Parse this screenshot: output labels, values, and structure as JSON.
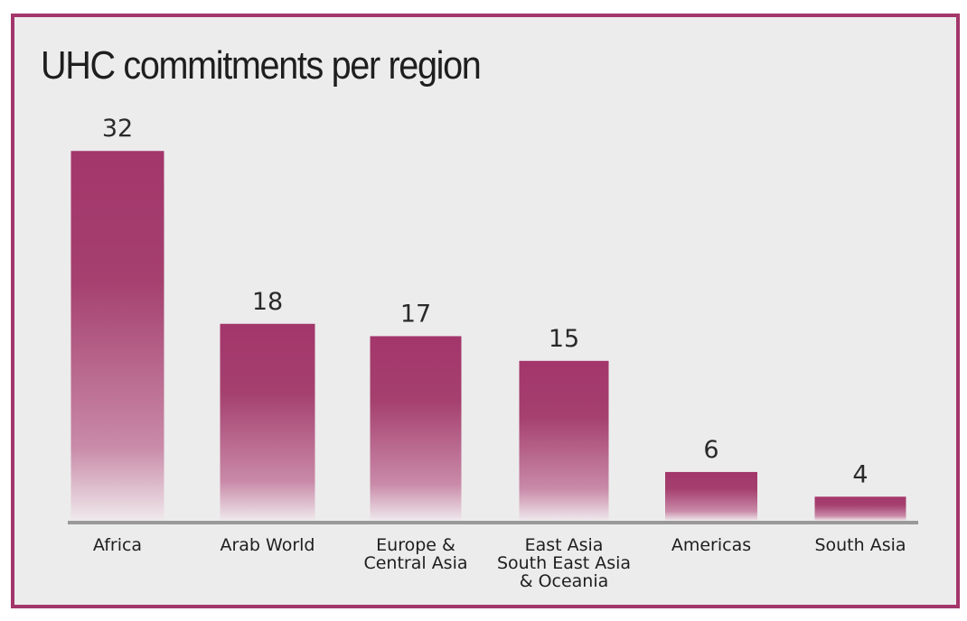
{
  "chart_data": {
    "type": "bar",
    "title": "UHC commitments per region",
    "xlabel": "",
    "ylabel": "",
    "categories": [
      [
        "Africa"
      ],
      [
        "Arab World"
      ],
      [
        "Europe &",
        "Central Asia"
      ],
      [
        "East Asia",
        "South East Asia",
        "& Oceania"
      ],
      [
        "Americas"
      ],
      [
        "South Asia"
      ]
    ],
    "values": [
      32,
      18,
      17,
      15,
      6,
      4
    ],
    "data_labels": true,
    "grid": false,
    "colors": {
      "bar": "#a3366b",
      "frame": "#a3366b",
      "axis": "#999999",
      "background": "#ececec"
    }
  }
}
